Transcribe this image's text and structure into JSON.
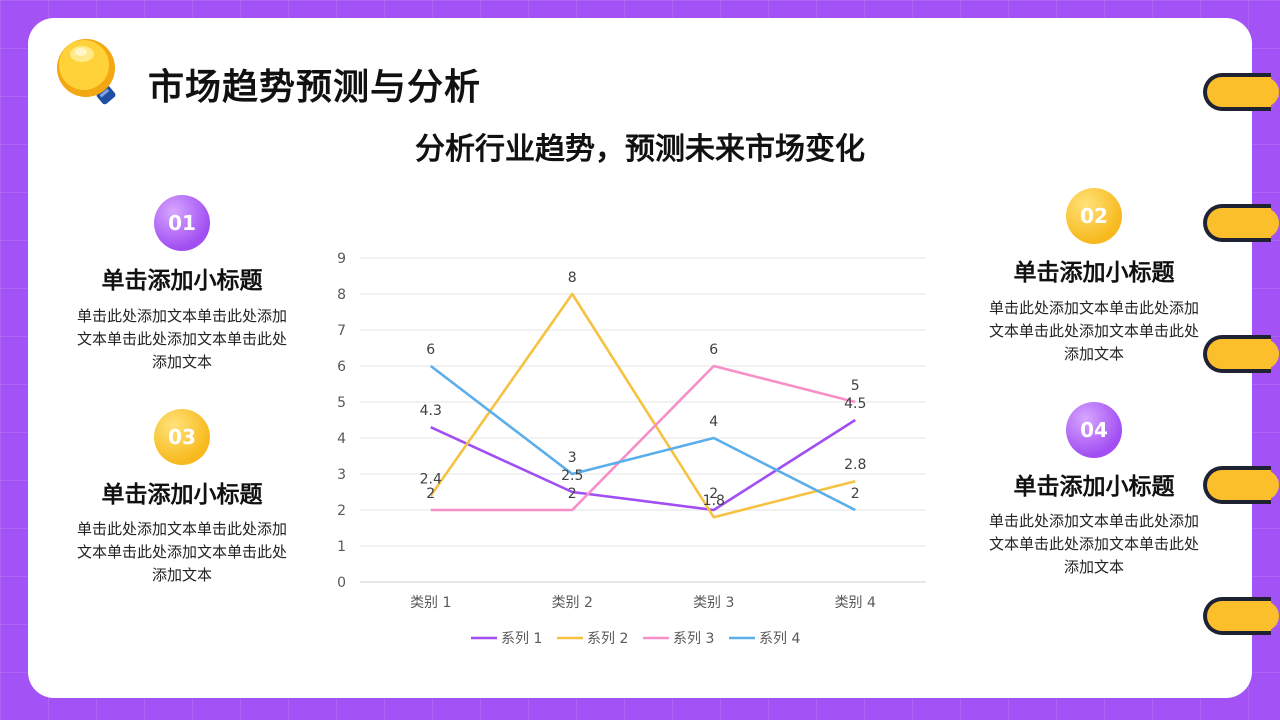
{
  "header": {
    "title": "市场趋势预测与分析",
    "subtitle": "分析行业趋势，预测未来市场变化"
  },
  "blocks": [
    {
      "num": "01",
      "title": "单击添加小标题",
      "text": "单击此处添加文本单击此处添加文本单击此处添加文本单击此处添加文本"
    },
    {
      "num": "02",
      "title": "单击添加小标题",
      "text": "单击此处添加文本单击此处添加文本单击此处添加文本单击此处添加文本"
    },
    {
      "num": "03",
      "title": "单击添加小标题",
      "text": "单击此处添加文本单击此处添加文本单击此处添加文本单击此处添加文本"
    },
    {
      "num": "04",
      "title": "单击添加小标题",
      "text": "单击此处添加文本单击此处添加文本单击此处添加文本单击此处添加文本"
    }
  ],
  "colors": {
    "background": "#a352f5",
    "accent_purple": "#a14ef2",
    "accent_yellow": "#f7b91d"
  },
  "icons": {
    "logo": "lightbulb-icon",
    "binder": "binder-ring-icon"
  },
  "chart_data": {
    "type": "line",
    "categories": [
      "类别 1",
      "类别 2",
      "类别 3",
      "类别 4"
    ],
    "ylim": [
      0,
      9
    ],
    "yticks": [
      0,
      1,
      2,
      3,
      4,
      5,
      6,
      7,
      8,
      9
    ],
    "grid": true,
    "legend_position": "bottom",
    "series": [
      {
        "name": "系列 1",
        "color": "#a14ef2",
        "values": [
          4.3,
          2.5,
          2,
          4.5
        ]
      },
      {
        "name": "系列 2",
        "color": "#f5c242",
        "values": [
          2.4,
          8,
          1.8,
          2.8
        ]
      },
      {
        "name": "系列 3",
        "color": "#f78fc8",
        "values": [
          2,
          2,
          6,
          5
        ]
      },
      {
        "name": "系列 4",
        "color": "#5aaeea",
        "values": [
          6,
          3,
          4,
          2
        ]
      }
    ]
  }
}
